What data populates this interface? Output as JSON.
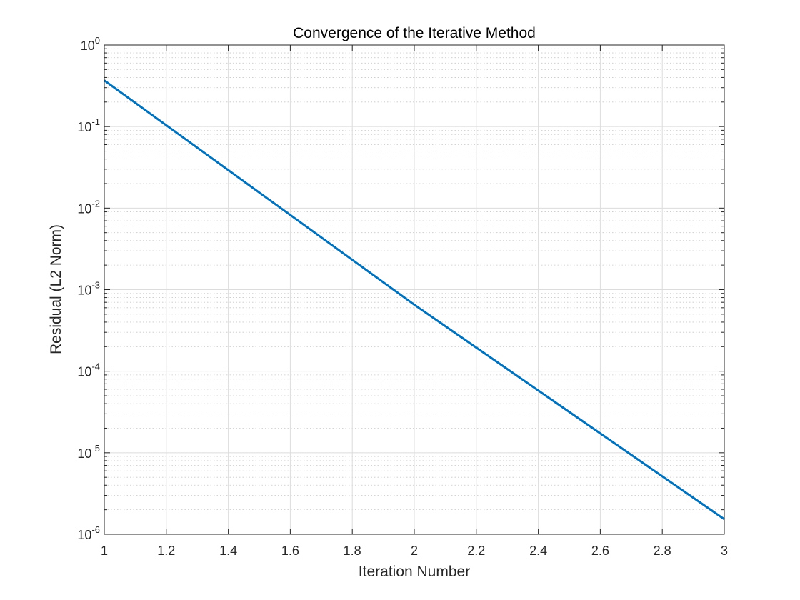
{
  "chart_data": {
    "type": "line",
    "title": "Convergence of the Iterative Method",
    "xlabel": "Iteration Number",
    "ylabel": "Residual (L2 Norm)",
    "xlim": [
      1,
      3
    ],
    "ylim": [
      1e-06,
      1
    ],
    "yscale": "log",
    "grid": true,
    "minor_grid": true,
    "x_ticks": [
      1,
      1.2,
      1.4,
      1.6,
      1.8,
      2,
      2.2,
      2.4,
      2.6,
      2.8,
      3
    ],
    "x_tick_labels": [
      "1",
      "1.2",
      "1.4",
      "1.6",
      "1.8",
      "2",
      "2.2",
      "2.4",
      "2.6",
      "2.8",
      "3"
    ],
    "y_ticks": [
      {
        "value": 1,
        "base": "10",
        "exp": "0"
      },
      {
        "value": 0.1,
        "base": "10",
        "exp": "-1"
      },
      {
        "value": 0.01,
        "base": "10",
        "exp": "-2"
      },
      {
        "value": 0.001,
        "base": "10",
        "exp": "-3"
      },
      {
        "value": 0.0001,
        "base": "10",
        "exp": "-4"
      },
      {
        "value": 1e-05,
        "base": "10",
        "exp": "-5"
      },
      {
        "value": 1e-06,
        "base": "10",
        "exp": "-6"
      }
    ],
    "series": [
      {
        "color": "#0072BD",
        "x": [
          1,
          2,
          3
        ],
        "y": [
          0.368,
          0.000654,
          1.53e-06
        ]
      }
    ]
  }
}
